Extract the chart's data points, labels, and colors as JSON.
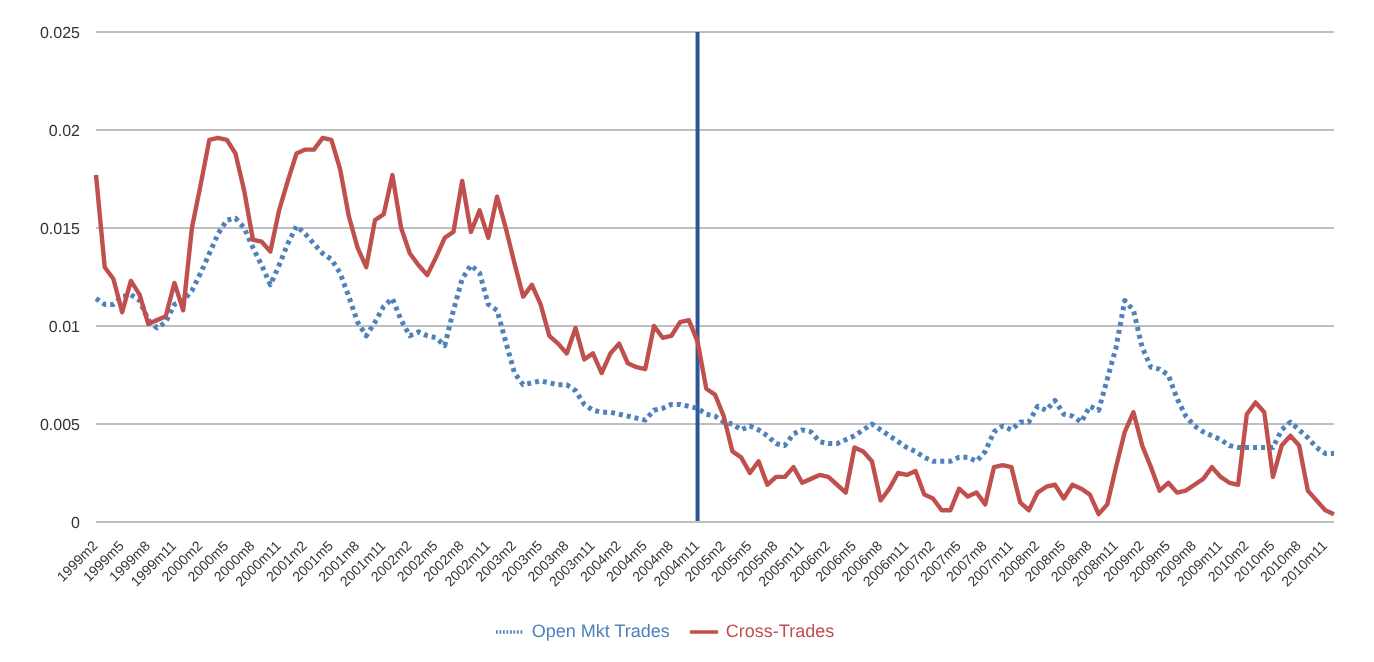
{
  "chart_data": {
    "type": "line",
    "categories": [
      "1999m2",
      null,
      null,
      "1999m5",
      null,
      null,
      "1999m8",
      null,
      null,
      "1999m11",
      null,
      null,
      "2000m2",
      null,
      null,
      "2000m5",
      null,
      null,
      "2000m8",
      null,
      null,
      "2000m11",
      null,
      null,
      "2001m2",
      null,
      null,
      "2001m5",
      null,
      null,
      "2001m8",
      null,
      null,
      "2001m11",
      null,
      null,
      "2002m2",
      null,
      null,
      "2002m5",
      null,
      null,
      "2002m8",
      null,
      null,
      "2002m11",
      null,
      null,
      "2003m2",
      null,
      null,
      "2003m5",
      null,
      null,
      "2003m8",
      null,
      null,
      "2003m11",
      null,
      null,
      "2004m2",
      null,
      null,
      "2004m5",
      null,
      null,
      "2004m8",
      null,
      null,
      "2004m11",
      null,
      null,
      "2005m2",
      null,
      null,
      "2005m5",
      null,
      null,
      "2005m8",
      null,
      null,
      "2005m11",
      null,
      null,
      "2006m2",
      null,
      null,
      "2006m5",
      null,
      null,
      "2006m8",
      null,
      null,
      "2006m11",
      null,
      null,
      "2007m2",
      null,
      null,
      "2007m5",
      null,
      null,
      "2007m8",
      null,
      null,
      "2007m11",
      null,
      null,
      "2008m2",
      null,
      null,
      "2008m5",
      null,
      null,
      "2008m8",
      null,
      null,
      "2008m11",
      null,
      null,
      "2009m2",
      null,
      null,
      "2009m5",
      null,
      null,
      "2009m8",
      null,
      null,
      "2009m11",
      null,
      null,
      "2010m2",
      null,
      null,
      "2010m5",
      null,
      null,
      "2010m8",
      null,
      null,
      "2010m11",
      null
    ],
    "series": [
      {
        "name": "Open Mkt Trades",
        "color": "#4f81bd",
        "line_style": "dotted",
        "values": [
          0.0114,
          0.0111,
          0.0111,
          0.0115,
          0.0116,
          0.0113,
          0.0103,
          0.0099,
          0.0102,
          0.0111,
          0.0113,
          0.0118,
          0.0127,
          0.0137,
          0.0147,
          0.0154,
          0.0155,
          0.015,
          0.014,
          0.0131,
          0.0121,
          0.0131,
          0.0142,
          0.0151,
          0.0147,
          0.0142,
          0.0137,
          0.0134,
          0.0127,
          0.0115,
          0.0102,
          0.0095,
          0.0102,
          0.011,
          0.0114,
          0.0103,
          0.0095,
          0.0097,
          0.0095,
          0.0094,
          0.009,
          0.0108,
          0.0124,
          0.0131,
          0.0127,
          0.0111,
          0.0108,
          0.0092,
          0.0076,
          0.007,
          0.0071,
          0.0072,
          0.0071,
          0.007,
          0.007,
          0.0067,
          0.006,
          0.0057,
          0.0056,
          0.0056,
          0.0055,
          0.0054,
          0.0053,
          0.0052,
          0.0057,
          0.0058,
          0.006,
          0.006,
          0.0059,
          0.0058,
          0.0055,
          0.0054,
          0.0051,
          0.005,
          0.0047,
          0.0049,
          0.0047,
          0.0044,
          0.004,
          0.0039,
          0.0045,
          0.0047,
          0.0046,
          0.0041,
          0.004,
          0.004,
          0.0042,
          0.0044,
          0.0047,
          0.005,
          0.0047,
          0.0044,
          0.0041,
          0.0038,
          0.0036,
          0.0033,
          0.0031,
          0.0031,
          0.0031,
          0.0033,
          0.0033,
          0.0031,
          0.0036,
          0.0046,
          0.0049,
          0.0047,
          0.0051,
          0.0051,
          0.0059,
          0.0057,
          0.0062,
          0.0055,
          0.0054,
          0.0051,
          0.0059,
          0.0057,
          0.0073,
          0.0089,
          0.0113,
          0.0108,
          0.0089,
          0.0079,
          0.0078,
          0.0075,
          0.0063,
          0.0054,
          0.0049,
          0.0046,
          0.0044,
          0.0042,
          0.0039,
          0.0038,
          0.0038,
          0.0038,
          0.0038,
          0.0038,
          0.0047,
          0.0051,
          0.0047,
          0.0043,
          0.0038,
          0.0035,
          0.0035
        ]
      },
      {
        "name": "Cross-Trades",
        "color": "#c0504d",
        "line_style": "solid",
        "values": [
          0.0177,
          0.013,
          0.0124,
          0.0107,
          0.0123,
          0.0116,
          0.0101,
          0.0103,
          0.0105,
          0.0122,
          0.0108,
          0.015,
          0.0172,
          0.0195,
          0.0196,
          0.0195,
          0.0188,
          0.0169,
          0.0144,
          0.0143,
          0.0138,
          0.0159,
          0.0174,
          0.0188,
          0.019,
          0.019,
          0.0196,
          0.0195,
          0.018,
          0.0156,
          0.014,
          0.013,
          0.0154,
          0.0157,
          0.0177,
          0.015,
          0.0137,
          0.0131,
          0.0126,
          0.0135,
          0.0145,
          0.0148,
          0.0174,
          0.0148,
          0.0159,
          0.0145,
          0.0166,
          0.015,
          0.0132,
          0.0115,
          0.0121,
          0.0111,
          0.0095,
          0.0091,
          0.0086,
          0.0099,
          0.0083,
          0.0086,
          0.0076,
          0.0086,
          0.0091,
          0.0081,
          0.0079,
          0.0078,
          0.01,
          0.0094,
          0.0095,
          0.0102,
          0.0103,
          0.0092,
          0.0068,
          0.0065,
          0.0054,
          0.0036,
          0.0033,
          0.0025,
          0.0031,
          0.0019,
          0.0023,
          0.0023,
          0.0028,
          0.002,
          0.0022,
          0.0024,
          0.0023,
          0.0019,
          0.0015,
          0.0038,
          0.0036,
          0.0031,
          0.0011,
          0.0017,
          0.0025,
          0.0024,
          0.0026,
          0.0014,
          0.0012,
          0.0006,
          0.0006,
          0.0017,
          0.0013,
          0.0015,
          0.0009,
          0.0028,
          0.0029,
          0.0028,
          0.001,
          0.0006,
          0.0015,
          0.0018,
          0.0019,
          0.0012,
          0.0019,
          0.0017,
          0.0014,
          0.0004,
          0.0009,
          0.0028,
          0.0046,
          0.0056,
          0.0039,
          0.0028,
          0.0016,
          0.002,
          0.0015,
          0.0016,
          0.0019,
          0.0022,
          0.0028,
          0.0023,
          0.002,
          0.0019,
          0.0055,
          0.0061,
          0.0056,
          0.0023,
          0.0039,
          0.0044,
          0.0039,
          0.0016,
          0.0011,
          0.0006,
          0.0004
        ]
      }
    ],
    "ylim": [
      0,
      0.025
    ],
    "yticks": [
      0,
      0.005,
      0.01,
      0.015,
      0.02,
      0.025
    ],
    "grid": "y",
    "legend": "bottom",
    "marker": "none",
    "ref_lines": [
      {
        "axis": "x",
        "value": "2004m11",
        "color": "#2f5597",
        "line_style": "solid"
      }
    ]
  }
}
